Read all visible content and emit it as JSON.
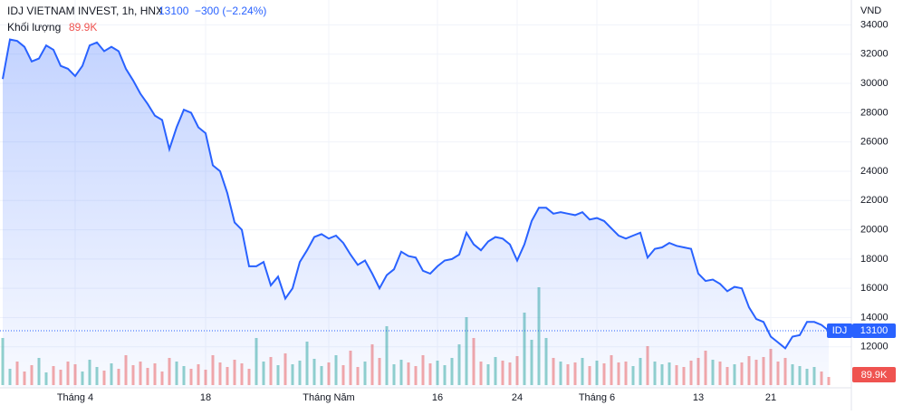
{
  "chart_data": {
    "type": "line",
    "title": "IDJ VIETNAM INVEST, 1h, HNX",
    "last_price": 13100,
    "change": "−300 (−2.24%)",
    "volume_title": "Khối lượng",
    "volume_readout": "89.9K",
    "symbol": "IDJ",
    "currency": "VND",
    "xlim": [
      0,
      114
    ],
    "xticks": [
      {
        "value": 10,
        "label": "Tháng 4"
      },
      {
        "value": 28,
        "label": "18"
      },
      {
        "value": 45,
        "label": "Tháng Năm"
      },
      {
        "value": 60,
        "label": "16"
      },
      {
        "value": 71,
        "label": "24"
      },
      {
        "value": 82,
        "label": "Tháng 6"
      },
      {
        "value": 96,
        "label": "13"
      },
      {
        "value": 106,
        "label": "21"
      }
    ],
    "ylim": [
      9200,
      35700
    ],
    "yticks": [
      12000,
      14000,
      16000,
      18000,
      20000,
      22000,
      24000,
      26000,
      28000,
      30000,
      32000,
      34000
    ],
    "vlim": [
      0,
      1100000
    ],
    "series": [
      {
        "name": "IDJ",
        "color": "#2962ff",
        "values": [
          30300,
          33000,
          32900,
          32500,
          31500,
          31700,
          32600,
          32300,
          31200,
          31000,
          30500,
          31200,
          32600,
          32800,
          32200,
          32500,
          32200,
          31000,
          30200,
          29300,
          28600,
          27800,
          27500,
          25500,
          27000,
          28200,
          28000,
          27000,
          26600,
          24400,
          24000,
          22500,
          20500,
          20000,
          17500,
          17500,
          17800,
          16200,
          16800,
          15300,
          16000,
          17800,
          18600,
          19500,
          19700,
          19400,
          19600,
          19100,
          18300,
          17600,
          17900,
          17000,
          16000,
          16900,
          17300,
          18500,
          18200,
          18100,
          17200,
          17000,
          17500,
          17900,
          18000,
          18300,
          19800,
          19000,
          18600,
          19200,
          19500,
          19400,
          19000,
          17900,
          19000,
          20600,
          21500,
          21500,
          21100,
          21200,
          21100,
          21000,
          21200,
          20700,
          20800,
          20600,
          20100,
          19600,
          19400,
          19600,
          19800,
          18100,
          18700,
          18800,
          19100,
          18900,
          18800,
          18700,
          17000,
          16500,
          16600,
          16300,
          15800,
          16100,
          16000,
          14700,
          13900,
          13700,
          12700,
          12300,
          11900,
          12700,
          12800,
          13700,
          13700,
          13500,
          13100
        ]
      },
      {
        "name": "Khối lượng",
        "up_color": "#26a69a",
        "down_color": "#ef5350",
        "values": [
          520000,
          180000,
          260000,
          150000,
          220000,
          300000,
          140000,
          210000,
          170000,
          260000,
          230000,
          150000,
          280000,
          200000,
          160000,
          240000,
          180000,
          330000,
          220000,
          260000,
          190000,
          240000,
          150000,
          300000,
          260000,
          210000,
          180000,
          230000,
          170000,
          330000,
          250000,
          200000,
          280000,
          240000,
          180000,
          520000,
          260000,
          310000,
          220000,
          350000,
          230000,
          270000,
          480000,
          290000,
          210000,
          250000,
          330000,
          220000,
          380000,
          200000,
          260000,
          450000,
          300000,
          650000,
          230000,
          280000,
          250000,
          210000,
          330000,
          240000,
          270000,
          220000,
          300000,
          450000,
          750000,
          520000,
          260000,
          230000,
          310000,
          270000,
          250000,
          320000,
          800000,
          500000,
          1080000,
          520000,
          300000,
          260000,
          230000,
          250000,
          300000,
          210000,
          270000,
          240000,
          330000,
          250000,
          260000,
          210000,
          300000,
          430000,
          260000,
          230000,
          250000,
          220000,
          200000,
          270000,
          300000,
          380000,
          280000,
          260000,
          200000,
          230000,
          250000,
          320000,
          280000,
          310000,
          400000,
          260000,
          300000,
          230000,
          210000,
          180000,
          200000,
          150000,
          89900
        ]
      }
    ]
  }
}
